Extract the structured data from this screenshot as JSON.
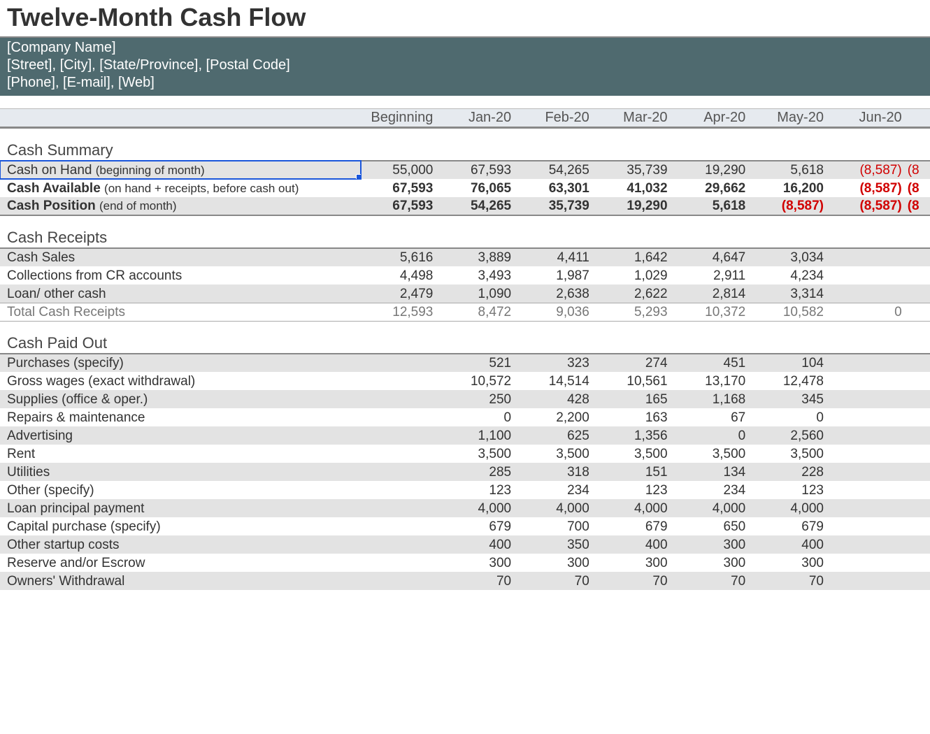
{
  "title": "Twelve-Month Cash Flow",
  "company": {
    "name": "[Company Name]",
    "address": "[Street], [City], [State/Province], [Postal Code]",
    "contact": "[Phone], [E-mail], [Web]"
  },
  "columns": [
    "Beginning",
    "Jan-20",
    "Feb-20",
    "Mar-20",
    "Apr-20",
    "May-20",
    "Jun-20"
  ],
  "sections": {
    "cash_summary": {
      "title": "Cash Summary",
      "rows": [
        {
          "label": "Cash on Hand",
          "sublabel": "(beginning of month)",
          "bold": false,
          "alt": true,
          "selected": true,
          "values": [
            "55,000",
            "67,593",
            "54,265",
            "35,739",
            "19,290",
            "5,618",
            "(8,587)"
          ],
          "neg": [
            false,
            false,
            false,
            false,
            false,
            false,
            true
          ],
          "overflow": "(8",
          "overflow_neg": true
        },
        {
          "label": "Cash Available",
          "sublabel": "(on hand + receipts, before cash out)",
          "bold": true,
          "alt": false,
          "values": [
            "67,593",
            "76,065",
            "63,301",
            "41,032",
            "29,662",
            "16,200",
            "(8,587)"
          ],
          "neg": [
            false,
            false,
            false,
            false,
            false,
            false,
            true
          ],
          "overflow": "(8",
          "overflow_neg": true
        },
        {
          "label": "Cash Position",
          "sublabel": "(end of month)",
          "bold": true,
          "alt": true,
          "values": [
            "67,593",
            "54,265",
            "35,739",
            "19,290",
            "5,618",
            "(8,587)",
            "(8,587)"
          ],
          "neg": [
            false,
            false,
            false,
            false,
            false,
            true,
            true
          ],
          "overflow": "(8",
          "overflow_neg": true
        }
      ]
    },
    "cash_receipts": {
      "title": "Cash Receipts",
      "rows": [
        {
          "label": "Cash Sales",
          "alt": true,
          "values": [
            "5,616",
            "3,889",
            "4,411",
            "1,642",
            "4,647",
            "3,034",
            ""
          ]
        },
        {
          "label": "Collections from CR accounts",
          "alt": false,
          "values": [
            "4,498",
            "3,493",
            "1,987",
            "1,029",
            "2,911",
            "4,234",
            ""
          ]
        },
        {
          "label": "Loan/ other cash",
          "alt": true,
          "values": [
            "2,479",
            "1,090",
            "2,638",
            "2,622",
            "2,814",
            "3,314",
            ""
          ]
        }
      ],
      "total": {
        "label": "Total Cash Receipts",
        "values": [
          "12,593",
          "8,472",
          "9,036",
          "5,293",
          "10,372",
          "10,582",
          "0"
        ]
      }
    },
    "cash_paid_out": {
      "title": "Cash Paid Out",
      "rows": [
        {
          "label": "Purchases (specify)",
          "alt": true,
          "values": [
            "",
            "521",
            "323",
            "274",
            "451",
            "104",
            ""
          ]
        },
        {
          "label": "Gross wages (exact withdrawal)",
          "alt": false,
          "values": [
            "",
            "10,572",
            "14,514",
            "10,561",
            "13,170",
            "12,478",
            ""
          ]
        },
        {
          "label": "Supplies (office & oper.)",
          "alt": true,
          "values": [
            "",
            "250",
            "428",
            "165",
            "1,168",
            "345",
            ""
          ]
        },
        {
          "label": "Repairs & maintenance",
          "alt": false,
          "values": [
            "",
            "0",
            "2,200",
            "163",
            "67",
            "0",
            ""
          ]
        },
        {
          "label": "Advertising",
          "alt": true,
          "values": [
            "",
            "1,100",
            "625",
            "1,356",
            "0",
            "2,560",
            ""
          ]
        },
        {
          "label": "Rent",
          "alt": false,
          "values": [
            "",
            "3,500",
            "3,500",
            "3,500",
            "3,500",
            "3,500",
            ""
          ]
        },
        {
          "label": "Utilities",
          "alt": true,
          "values": [
            "",
            "285",
            "318",
            "151",
            "134",
            "228",
            ""
          ]
        },
        {
          "label": "Other (specify)",
          "alt": false,
          "values": [
            "",
            "123",
            "234",
            "123",
            "234",
            "123",
            ""
          ]
        },
        {
          "label": "Loan principal payment",
          "alt": true,
          "values": [
            "",
            "4,000",
            "4,000",
            "4,000",
            "4,000",
            "4,000",
            ""
          ]
        },
        {
          "label": "Capital purchase (specify)",
          "alt": false,
          "values": [
            "",
            "679",
            "700",
            "679",
            "650",
            "679",
            ""
          ]
        },
        {
          "label": "Other startup costs",
          "alt": true,
          "values": [
            "",
            "400",
            "350",
            "400",
            "300",
            "400",
            ""
          ]
        },
        {
          "label": "Reserve and/or Escrow",
          "alt": false,
          "values": [
            "",
            "300",
            "300",
            "300",
            "300",
            "300",
            ""
          ]
        },
        {
          "label": "Owners' Withdrawal",
          "alt": true,
          "values": [
            "",
            "70",
            "70",
            "70",
            "70",
            "70",
            ""
          ]
        }
      ]
    }
  },
  "colors": {
    "header_bg": "#4f6a6f",
    "column_header_bg": "#e6eaef",
    "row_alt_bg": "#e3e3e3",
    "negative_text": "#d10000",
    "selection_border": "#1a56db"
  }
}
